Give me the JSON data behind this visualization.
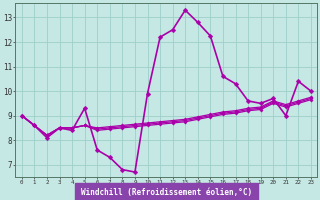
{
  "xlabel": "Windchill (Refroidissement éolien,°C)",
  "bg_color": "#c5e8e5",
  "grid_color": "#9ecfca",
  "line_color": "#aa00aa",
  "xlabel_bg": "#8844aa",
  "xlabel_fg": "#ffffff",
  "xlim_min": -0.5,
  "xlim_max": 23.5,
  "ylim_min": 6.5,
  "ylim_max": 13.6,
  "yticks": [
    7,
    8,
    9,
    10,
    11,
    12,
    13
  ],
  "xticks": [
    0,
    1,
    2,
    3,
    4,
    5,
    6,
    7,
    8,
    9,
    10,
    11,
    12,
    13,
    14,
    15,
    16,
    17,
    18,
    19,
    20,
    21,
    22,
    23
  ],
  "series": [
    [
      9.0,
      8.6,
      8.1,
      8.5,
      8.4,
      9.3,
      7.6,
      7.3,
      6.8,
      6.7,
      9.9,
      12.2,
      12.5,
      13.3,
      12.8,
      12.25,
      10.6,
      10.3,
      9.6,
      9.5,
      9.7,
      9.0,
      10.4,
      10.0
    ],
    [
      9.0,
      8.6,
      8.2,
      8.5,
      8.5,
      8.6,
      8.5,
      8.55,
      8.6,
      8.65,
      8.7,
      8.75,
      8.8,
      8.85,
      8.95,
      9.05,
      9.15,
      9.2,
      9.3,
      9.35,
      9.6,
      9.45,
      9.6,
      9.75
    ],
    [
      9.0,
      8.6,
      8.2,
      8.5,
      8.5,
      8.6,
      8.45,
      8.5,
      8.55,
      8.6,
      8.65,
      8.7,
      8.75,
      8.8,
      8.9,
      9.0,
      9.1,
      9.15,
      9.25,
      9.3,
      9.55,
      9.4,
      9.55,
      9.7
    ],
    [
      9.0,
      8.6,
      8.2,
      8.5,
      8.5,
      8.6,
      8.4,
      8.45,
      8.5,
      8.55,
      8.6,
      8.65,
      8.7,
      8.75,
      8.85,
      8.95,
      9.05,
      9.1,
      9.2,
      9.25,
      9.5,
      9.35,
      9.5,
      9.65
    ]
  ]
}
